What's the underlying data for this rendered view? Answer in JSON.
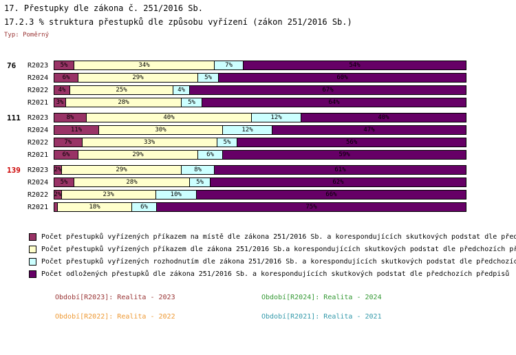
{
  "header": {
    "title1": "17. Přestupky dle zákona č. 251/2016 Sb.",
    "title2": "17.2.3 % struktura přestupků dle způsobu vyřízení (zákon 251/2016 Sb.)",
    "type_label": "Typ: Poměrný"
  },
  "chart_data": {
    "type": "bar",
    "stacked": true,
    "orientation": "horizontal",
    "value_unit": "%",
    "x_range": [
      0,
      100
    ],
    "title": "17.2.3 % struktura přestupků dle způsobu vyřízení (zákon 251/2016 Sb.)",
    "series": [
      {
        "name": "Počet přestupků vyřízených příkazem na místě dle zákona 251/2016 Sb. a korespondujících skutkových podstat dle před",
        "color": "#993366"
      },
      {
        "name": "Počet přestupků vyřízených příkazem dle zákona 251/2016 Sb.a korespondujících skutkových podstat dle předchozích př",
        "color": "#FFFFCC"
      },
      {
        "name": "Počet přestupků vyřízených rozhodnutím dle zákona 251/2016 Sb. a korespondujících skutkových podstat dle předchozíc",
        "color": "#CCFFFF"
      },
      {
        "name": "Počet odložených přestupků dle zákona 251/2016 Sb. a korespondujících skutkových podstat dle předchozích předpisů",
        "color": "#660066"
      }
    ],
    "groups": [
      {
        "label": "76",
        "label_color": "#000000",
        "rows": [
          {
            "period": "R2023",
            "values": [
              5,
              34,
              7,
              54
            ]
          },
          {
            "period": "R2024",
            "values": [
              6,
              29,
              5,
              60
            ]
          },
          {
            "period": "R2022",
            "values": [
              4,
              25,
              4,
              67
            ]
          },
          {
            "period": "R2021",
            "values": [
              3,
              28,
              5,
              64
            ]
          }
        ]
      },
      {
        "label": "111",
        "label_color": "#000000",
        "rows": [
          {
            "period": "R2023",
            "values": [
              8,
              40,
              12,
              40
            ]
          },
          {
            "period": "R2024",
            "values": [
              11,
              30,
              12,
              47
            ]
          },
          {
            "period": "R2022",
            "values": [
              7,
              33,
              5,
              56
            ]
          },
          {
            "period": "R2021",
            "values": [
              6,
              29,
              6,
              59
            ]
          }
        ]
      },
      {
        "label": "139",
        "label_color": "#CC0000",
        "rows": [
          {
            "period": "R2023",
            "values": [
              2,
              29,
              8,
              61
            ]
          },
          {
            "period": "R2024",
            "values": [
              5,
              28,
              5,
              62
            ]
          },
          {
            "period": "R2022",
            "values": [
              2,
              23,
              10,
              66
            ]
          },
          {
            "period": "R2021",
            "values": [
              1,
              18,
              6,
              75
            ],
            "labels": [
              "",
              "18%",
              "6%",
              "75%"
            ]
          }
        ]
      }
    ]
  },
  "period_legend": {
    "items": [
      {
        "label": "Období[R2023]: Realita - 2023",
        "color": "#993333"
      },
      {
        "label": "Období[R2024]: Realita - 2024",
        "color": "#339933"
      },
      {
        "label": "Období[R2022]: Realita - 2022",
        "color": "#EE9933"
      },
      {
        "label": "Období[R2021]: Realita - 2021",
        "color": "#3399AA"
      }
    ]
  }
}
